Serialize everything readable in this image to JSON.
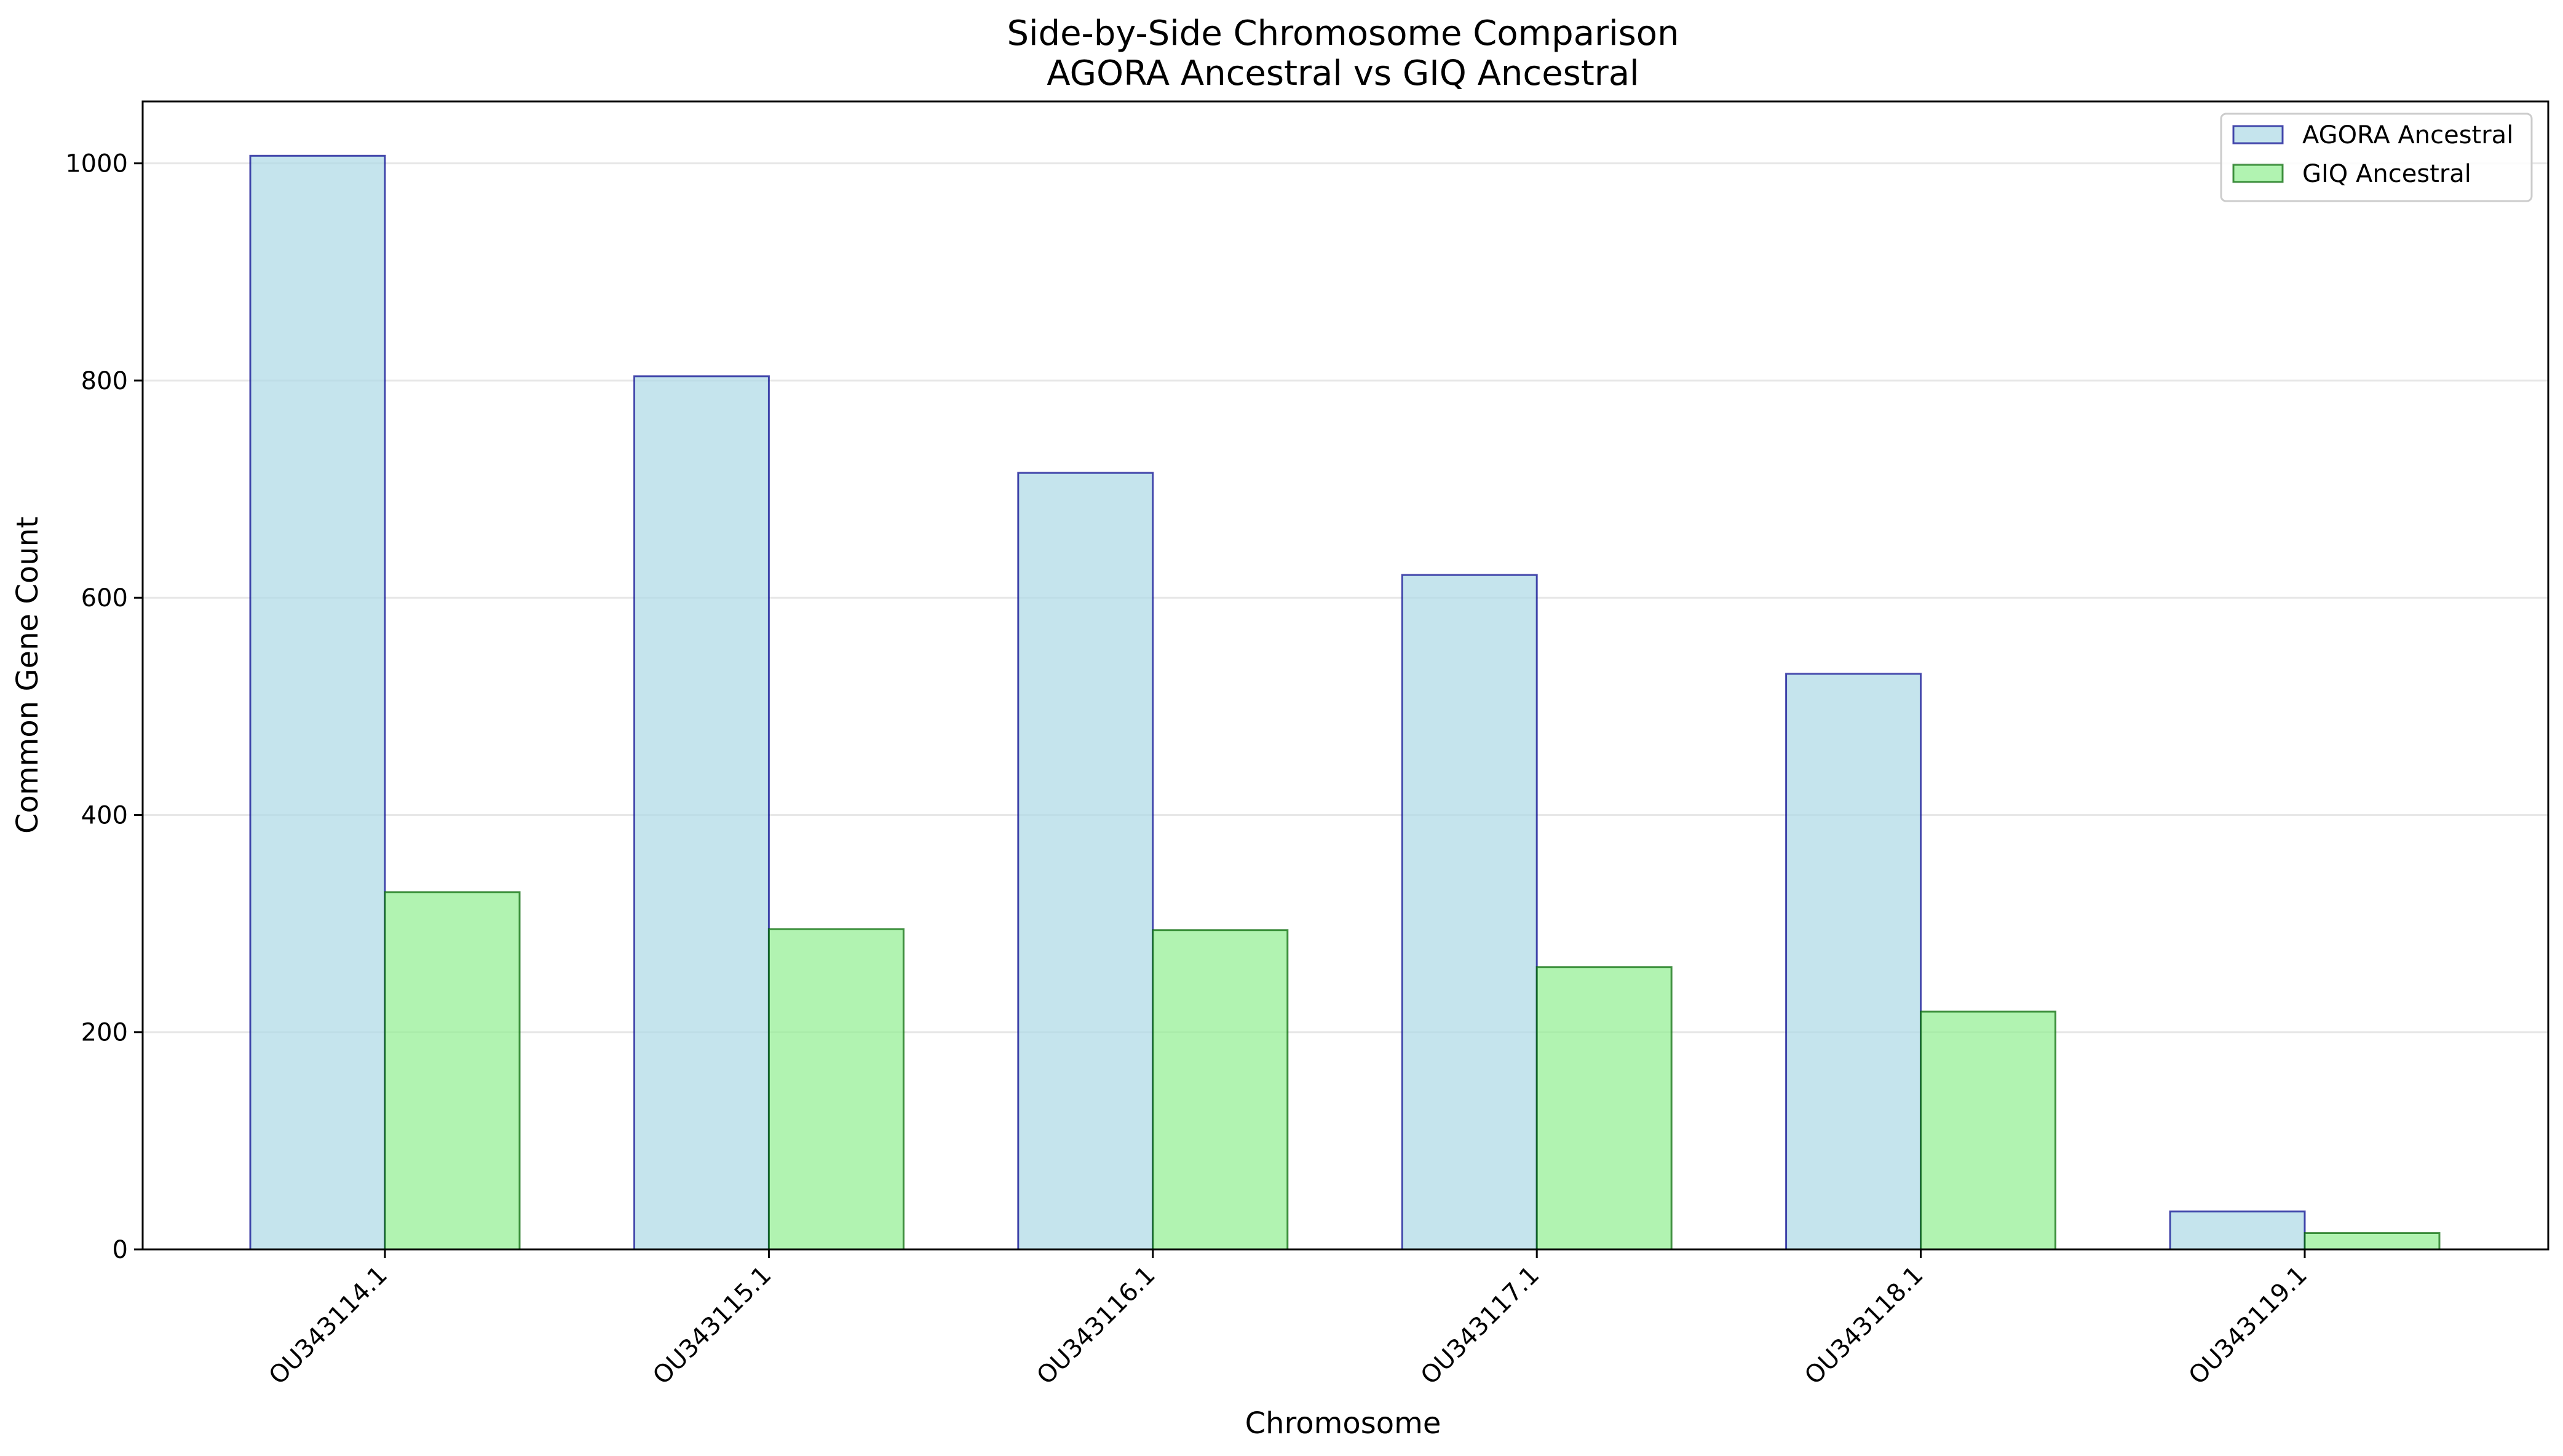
{
  "chart_data": {
    "type": "bar",
    "title": "Side-by-Side Chromosome Comparison",
    "subtitle": "AGORA Ancestral vs GIQ Ancestral",
    "xlabel": "Chromosome",
    "ylabel": "Common Gene Count",
    "categories": [
      "OU343114.1",
      "OU343115.1",
      "OU343116.1",
      "OU343117.1",
      "OU343118.1",
      "OU343119.1"
    ],
    "series": [
      {
        "name": "AGORA Ancestral",
        "values": [
          1007,
          804,
          715,
          621,
          530,
          35
        ],
        "fill": "#add8e6",
        "stroke": "#00008b"
      },
      {
        "name": "GIQ Ancestral",
        "values": [
          329,
          295,
          294,
          260,
          219,
          15
        ],
        "fill": "#90ee90",
        "stroke": "#006400"
      }
    ],
    "ylim": [
      0,
      1057
    ],
    "yticks": [
      0,
      200,
      400,
      600,
      800,
      1000
    ],
    "grid": "horizontal",
    "legend_position": "top-right"
  }
}
